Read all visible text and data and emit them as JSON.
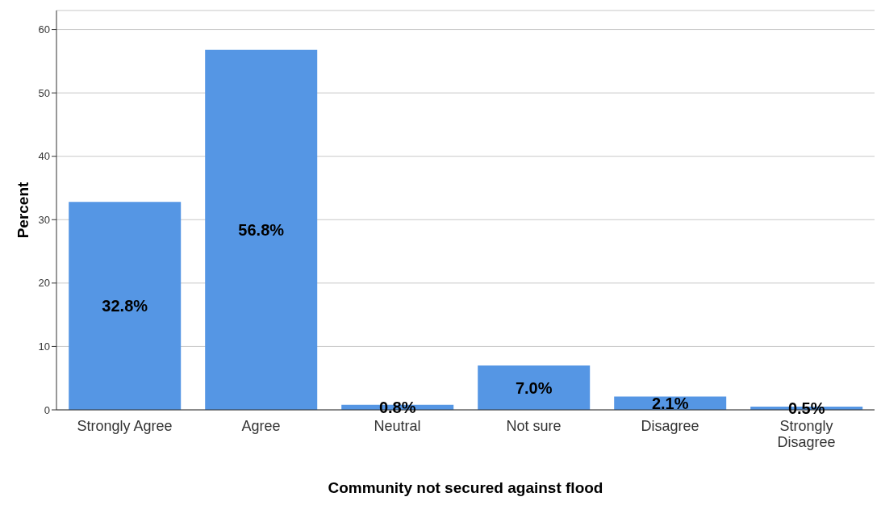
{
  "chart_data": {
    "type": "bar",
    "xlabel": "Community not secured against flood",
    "ylabel": "Percent",
    "categories": [
      "Strongly Agree",
      "Agree",
      "Neutral",
      "Not sure",
      "Disagree",
      "Strongly Disagree"
    ],
    "values": [
      32.8,
      56.8,
      0.8,
      7.0,
      2.1,
      0.5
    ],
    "value_labels": [
      "32.8%",
      "56.8%",
      "0.8%",
      "7.0%",
      "2.1%",
      "0.5%"
    ],
    "color": "#5596e4",
    "ylim": [
      0,
      63
    ],
    "yticks": [
      0,
      10,
      20,
      30,
      40,
      50,
      60
    ],
    "grid": "y",
    "legend": false
  }
}
